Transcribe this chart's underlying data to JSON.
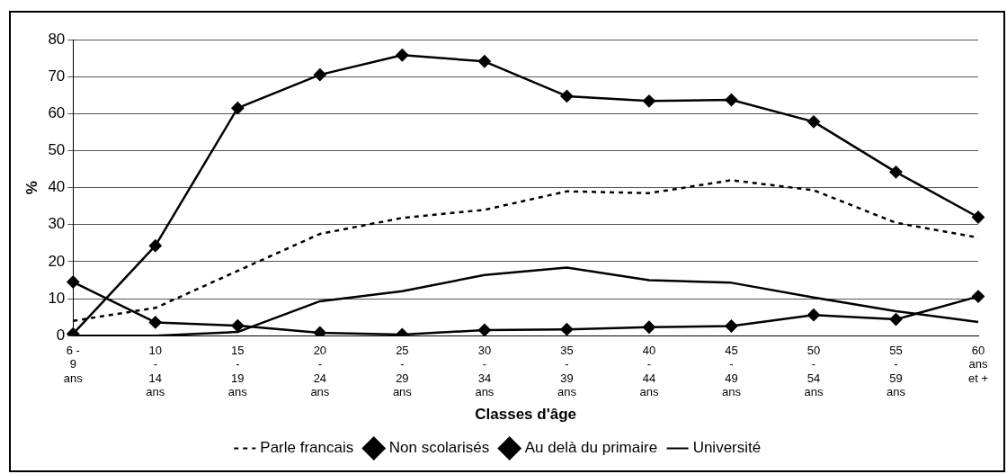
{
  "chart_data": {
    "type": "line",
    "xlabel": "Classes d'âge",
    "ylabel": "%",
    "categories": [
      "6 -\n9\nans",
      "10\n-\n14\nans",
      "15\n-\n19\nans",
      "20\n-\n24\nans",
      "25\n-\n29\nans",
      "30\n-\n34\nans",
      "35\n-\n39\nans",
      "40\n-\n44\nans",
      "45\n-\n49\nans",
      "50\n-\n54\nans",
      "55\n-\n59\nans",
      "60\nans\net +"
    ],
    "series": [
      {
        "name": "Parle francais",
        "color": "#000000",
        "line_style": "dashed",
        "marker": "none",
        "values": [
          4,
          7.5,
          17.5,
          27.5,
          31.8,
          34,
          39,
          38.5,
          42,
          39.3,
          30.5,
          26.5
        ]
      },
      {
        "name": "Non scolarisés",
        "color": "#000000",
        "line_style": "solid",
        "marker": "diamond",
        "values": [
          14.5,
          3.6,
          2.7,
          0.8,
          0.3,
          1.5,
          1.7,
          2.3,
          2.6,
          5.6,
          4.4,
          10.6
        ]
      },
      {
        "name": "Au delà du primaire",
        "color": "#000000",
        "line_style": "solid",
        "marker": "diamond",
        "values": [
          0.5,
          24.3,
          61.5,
          70.5,
          75.8,
          74.1,
          64.7,
          63.4,
          63.7,
          57.8,
          44.2,
          32
        ]
      },
      {
        "name": "Université",
        "color": "#000000",
        "line_style": "solid",
        "marker": "none",
        "values": [
          0,
          0,
          1,
          9.3,
          12,
          16.4,
          18.4,
          15,
          14.3,
          10.3,
          6.6,
          3.7
        ]
      }
    ],
    "ylim": [
      0,
      80
    ],
    "yticks": [
      0,
      10,
      20,
      30,
      40,
      50,
      60,
      70,
      80
    ],
    "grid": "y",
    "legend": "bottom"
  }
}
